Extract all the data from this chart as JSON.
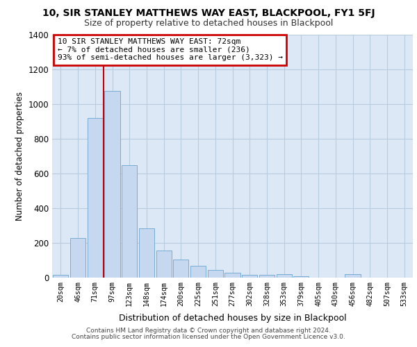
{
  "title1": "10, SIR STANLEY MATTHEWS WAY EAST, BLACKPOOL, FY1 5FJ",
  "title2": "Size of property relative to detached houses in Blackpool",
  "xlabel": "Distribution of detached houses by size in Blackpool",
  "ylabel": "Number of detached properties",
  "categories": [
    "20sqm",
    "46sqm",
    "71sqm",
    "97sqm",
    "123sqm",
    "148sqm",
    "174sqm",
    "200sqm",
    "225sqm",
    "251sqm",
    "277sqm",
    "302sqm",
    "328sqm",
    "353sqm",
    "379sqm",
    "405sqm",
    "430sqm",
    "456sqm",
    "482sqm",
    "507sqm",
    "533sqm"
  ],
  "values": [
    18,
    228,
    920,
    1075,
    648,
    285,
    155,
    103,
    70,
    45,
    30,
    18,
    17,
    20,
    10,
    0,
    0,
    20,
    0,
    0,
    0
  ],
  "bar_color": "#c5d8f0",
  "bar_edge_color": "#7aadd4",
  "vline_color": "#cc0000",
  "vline_index": 2,
  "annotation_text": "10 SIR STANLEY MATTHEWS WAY EAST: 72sqm\n← 7% of detached houses are smaller (236)\n93% of semi-detached houses are larger (3,323) →",
  "annotation_box_facecolor": "#ffffff",
  "annotation_box_edgecolor": "#cc0000",
  "ylim": [
    0,
    1400
  ],
  "yticks": [
    0,
    200,
    400,
    600,
    800,
    1000,
    1200,
    1400
  ],
  "bg_color": "#dce8f5",
  "grid_color": "#b8cce0",
  "footer1": "Contains HM Land Registry data © Crown copyright and database right 2024.",
  "footer2": "Contains public sector information licensed under the Open Government Licence v3.0."
}
